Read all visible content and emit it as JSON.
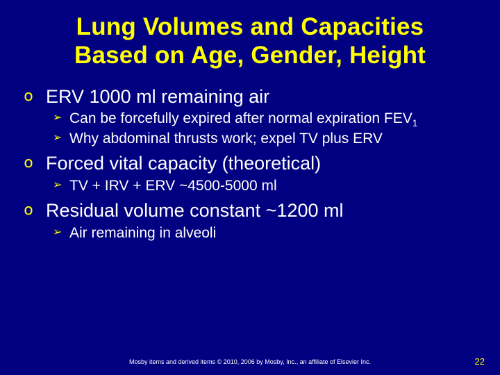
{
  "colors": {
    "background": "#000080",
    "title": "#ffff00",
    "body": "#ffffff",
    "bullet_l1": "#ffff00",
    "bullet_l2": "#ffff00",
    "footer": "#ffffff",
    "pagenum": "#ffff00"
  },
  "bullets": {
    "l1_glyph": "໐",
    "l2_glyph": "➢"
  },
  "title_line1": "Lung Volumes and Capacities",
  "title_line2": "Based on Age, Gender, Height",
  "items": [
    {
      "text": "ERV 1000 ml remaining air",
      "sub": [
        {
          "text_pre": "Can be forcefully expired after normal expiration FEV",
          "subscript": "1",
          "text_post": ""
        },
        {
          "text_pre": "Why abdominal thrusts work; expel TV plus ERV",
          "subscript": "",
          "text_post": ""
        }
      ]
    },
    {
      "text": "Forced vital capacity (theoretical)",
      "sub": [
        {
          "text_pre": "TV + IRV + ERV ~4500-5000 ml",
          "subscript": "",
          "text_post": ""
        }
      ]
    },
    {
      "text": "Residual volume constant ~1200 ml",
      "sub": [
        {
          "text_pre": "Air remaining in alveoli",
          "subscript": "",
          "text_post": ""
        }
      ]
    }
  ],
  "footer": "Mosby items and derived items © 2010, 2006 by Mosby, Inc., an affiliate of Elsevier Inc.",
  "pagenum": "22"
}
